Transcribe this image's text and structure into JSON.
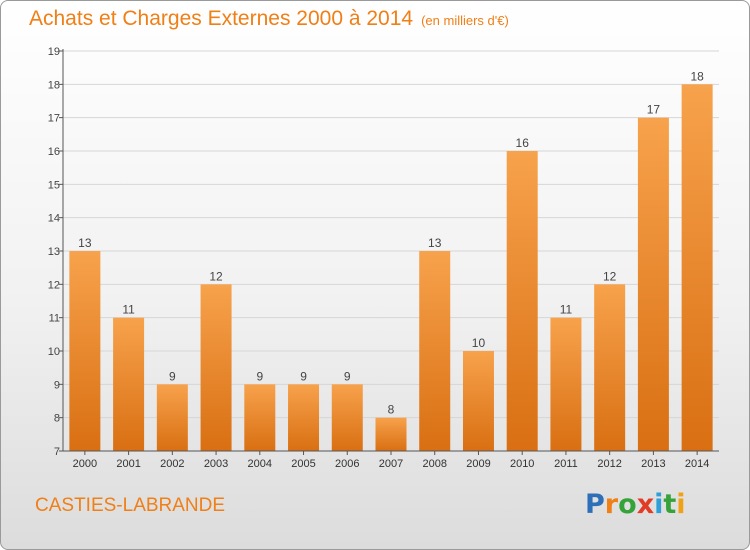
{
  "header": {
    "title": "Achats et Charges Externes 2000 à 2014",
    "subtitle": "(en milliers d'€)"
  },
  "footer": {
    "commune": "CASTIES-LABRANDE",
    "logo_letters": [
      {
        "ch": "P",
        "color": "#2e6fb8"
      },
      {
        "ch": "r",
        "color": "#f07f16"
      },
      {
        "ch": "o",
        "color": "#36a23a"
      },
      {
        "ch": "x",
        "color": "#e23b26"
      },
      {
        "ch": "i",
        "color": "#2e9fd8"
      },
      {
        "ch": "t",
        "color": "#36a23a"
      },
      {
        "ch": "i",
        "color": "#f0a116"
      }
    ]
  },
  "colors": {
    "bar_light": "#f7a24c",
    "bar_dark": "#d96f12",
    "axis": "#555555",
    "grid": "#d6d6d6"
  },
  "chart_data": {
    "type": "bar",
    "categories": [
      "2000",
      "2001",
      "2002",
      "2003",
      "2004",
      "2005",
      "2006",
      "2007",
      "2008",
      "2009",
      "2010",
      "2011",
      "2012",
      "2013",
      "2014"
    ],
    "values": [
      13,
      11,
      9,
      12,
      9,
      9,
      9,
      8,
      13,
      10,
      16,
      11,
      12,
      17,
      18
    ],
    "title": "Achats et Charges Externes 2000 à 2014",
    "subtitle": "(en milliers d'€)",
    "ylim": [
      7,
      19
    ],
    "yticks": [
      7,
      8,
      9,
      10,
      11,
      12,
      13,
      14,
      15,
      16,
      17,
      18,
      19
    ],
    "grid": true,
    "data_labels": true
  }
}
